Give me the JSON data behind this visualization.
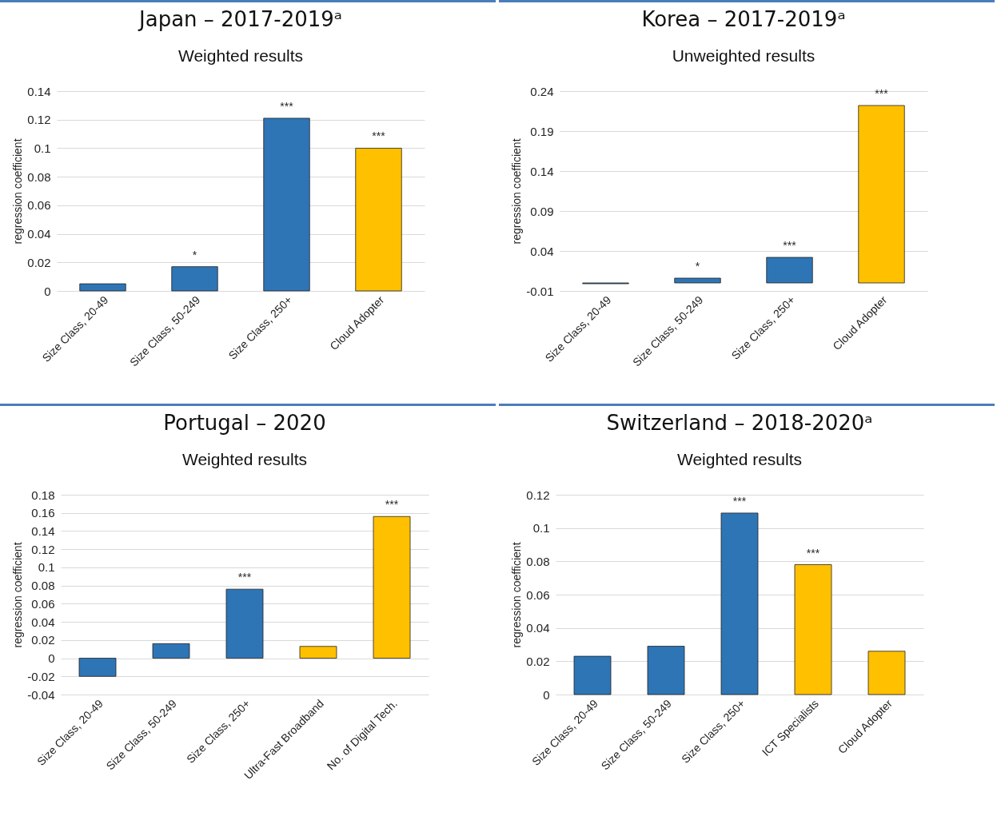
{
  "chart_data": [
    {
      "type": "bar",
      "title": "Japan – 2017-2019ᵃ",
      "subtitle": "Weighted results",
      "ylabel": "regression coefficient",
      "categories": [
        "Size Class, 20-49",
        "Size Class, 50-249",
        "Size Class, 250+",
        "Cloud Adopter"
      ],
      "values": [
        0.005,
        0.017,
        0.121,
        0.1
      ],
      "colors": [
        "#2e75b6",
        "#2e75b6",
        "#2e75b6",
        "#ffc000"
      ],
      "ylim": [
        0,
        0.14
      ],
      "yticks": [
        0,
        0.02,
        0.04,
        0.06,
        0.08,
        0.1,
        0.12,
        0.14
      ],
      "grid": "y",
      "annotations": [
        {
          "text": "*",
          "x": "Size Class, 50-249",
          "y": 0.017
        },
        {
          "text": "***",
          "x": "Size Class, 250+",
          "y": 0.121
        },
        {
          "text": "***",
          "x": "Cloud Adopter",
          "y": 0.1
        }
      ]
    },
    {
      "type": "bar",
      "title": "Korea – 2017-2019ᵃ",
      "subtitle": "Unweighted results",
      "ylabel": "regression coefficient",
      "categories": [
        "Size Class, 20-49",
        "Size Class, 50-249",
        "Size Class, 250+",
        "Cloud Adopter"
      ],
      "values": [
        -0.001,
        0.006,
        0.032,
        0.222
      ],
      "colors": [
        "#2e75b6",
        "#2e75b6",
        "#2e75b6",
        "#ffc000"
      ],
      "ylim": [
        -0.01,
        0.24
      ],
      "yticks": [
        -0.01,
        0.04,
        0.09,
        0.14,
        0.19,
        0.24
      ],
      "grid": "y",
      "annotations": [
        {
          "text": "*",
          "x": "Size Class, 50-249",
          "y": 0.006
        },
        {
          "text": "***",
          "x": "Size Class, 250+",
          "y": 0.032
        },
        {
          "text": "***",
          "x": "Cloud Adopter",
          "y": 0.222
        }
      ]
    },
    {
      "type": "bar",
      "title": "Portugal – 2020",
      "subtitle": "Weighted results",
      "ylabel": "regression coefficient",
      "categories": [
        "Size Class, 20-49",
        "Size Class, 50-249",
        "Size Class, 250+",
        "Ultra-Fast Broadband",
        "No. of Digital Tech."
      ],
      "values": [
        -0.02,
        0.016,
        0.076,
        0.013,
        0.156
      ],
      "colors": [
        "#2e75b6",
        "#2e75b6",
        "#2e75b6",
        "#ffc000",
        "#ffc000"
      ],
      "ylim": [
        -0.04,
        0.18
      ],
      "yticks": [
        -0.04,
        -0.02,
        0,
        0.02,
        0.04,
        0.06,
        0.08,
        0.1,
        0.12,
        0.14,
        0.16,
        0.18
      ],
      "grid": "y",
      "annotations": [
        {
          "text": "***",
          "x": "Size Class, 250+",
          "y": 0.076
        },
        {
          "text": "***",
          "x": "No. of Digital Tech.",
          "y": 0.156
        }
      ]
    },
    {
      "type": "bar",
      "title": "Switzerland – 2018-2020ᵃ",
      "subtitle": "Weighted results",
      "ylabel": "regression coefficient",
      "categories": [
        "Size Class, 20-49",
        "Size Class, 50-249",
        "Size Class, 250+",
        "ICT Specialists",
        "Cloud Adopter"
      ],
      "values": [
        0.023,
        0.029,
        0.109,
        0.078,
        0.026
      ],
      "colors": [
        "#2e75b6",
        "#2e75b6",
        "#2e75b6",
        "#ffc000",
        "#ffc000"
      ],
      "ylim": [
        0,
        0.12
      ],
      "yticks": [
        0,
        0.02,
        0.04,
        0.06,
        0.08,
        0.1,
        0.12
      ],
      "grid": "y",
      "annotations": [
        {
          "text": "***",
          "x": "Size Class, 250+",
          "y": 0.109
        },
        {
          "text": "***",
          "x": "ICT Specialists",
          "y": 0.078
        }
      ]
    }
  ]
}
